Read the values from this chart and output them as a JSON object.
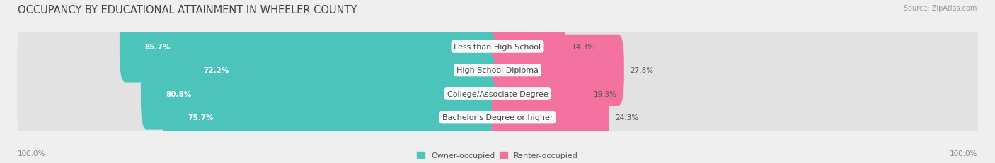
{
  "title": "OCCUPANCY BY EDUCATIONAL ATTAINMENT IN WHEELER COUNTY",
  "source": "Source: ZipAtlas.com",
  "categories": [
    "Less than High School",
    "High School Diploma",
    "College/Associate Degree",
    "Bachelor's Degree or higher"
  ],
  "owner_values": [
    85.7,
    72.2,
    80.8,
    75.7
  ],
  "renter_values": [
    14.3,
    27.8,
    19.3,
    24.3
  ],
  "owner_color": "#4DC4BB",
  "renter_color": "#F472A0",
  "bg_color": "#efefef",
  "row_bg_color": "#e2e2e2",
  "title_fontsize": 10.5,
  "cat_fontsize": 8.0,
  "bar_label_fontsize": 7.5,
  "axis_label_fontsize": 7.5,
  "legend_fontsize": 8.0,
  "left_axis_label": "100.0%",
  "right_axis_label": "100.0%"
}
